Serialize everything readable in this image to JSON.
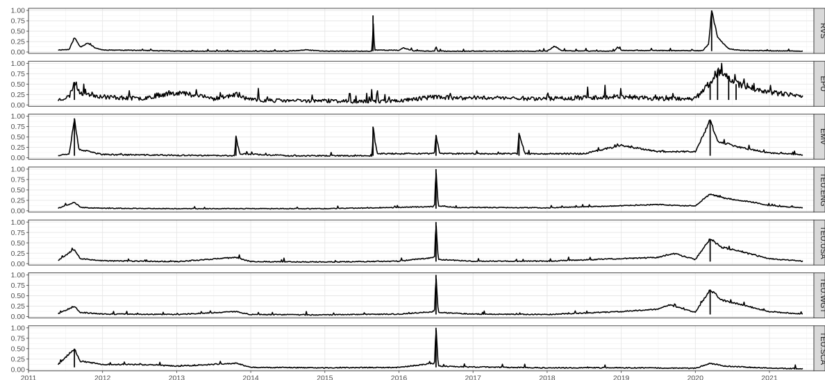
{
  "chart_data": {
    "type": "line",
    "layout": "faceted",
    "title": "",
    "xlabel": "",
    "ylabel": "",
    "xlim": [
      2011.0,
      2021.6
    ],
    "ylim": [
      0,
      1
    ],
    "x_ticks": [
      "2011",
      "2012",
      "2013",
      "2014",
      "2015",
      "2016",
      "2017",
      "2018",
      "2019",
      "2020",
      "2021"
    ],
    "y_ticks": [
      "0.00",
      "0.25",
      "0.50",
      "0.75",
      "1.00"
    ],
    "grid": true,
    "line_color": "#000000",
    "strip_color": "#d9d9d9",
    "panels": [
      {
        "label": "RVS",
        "baseline": 0.02,
        "noise": 0.015,
        "seed": 11,
        "points": [
          [
            2011.4,
            0.05
          ],
          [
            2011.55,
            0.06
          ],
          [
            2011.62,
            0.35
          ],
          [
            2011.7,
            0.12
          ],
          [
            2011.8,
            0.22
          ],
          [
            2011.9,
            0.1
          ],
          [
            2012.0,
            0.05
          ],
          [
            2012.5,
            0.04
          ],
          [
            2013.0,
            0.02
          ],
          [
            2014.5,
            0.02
          ],
          [
            2014.75,
            0.05
          ],
          [
            2015.0,
            0.02
          ],
          [
            2015.64,
            0.02
          ],
          [
            2015.65,
            0.88
          ],
          [
            2015.67,
            0.05
          ],
          [
            2016.0,
            0.04
          ],
          [
            2016.05,
            0.1
          ],
          [
            2016.2,
            0.03
          ],
          [
            2016.48,
            0.02
          ],
          [
            2016.5,
            0.14
          ],
          [
            2016.52,
            0.02
          ],
          [
            2018.0,
            0.02
          ],
          [
            2018.1,
            0.14
          ],
          [
            2018.2,
            0.03
          ],
          [
            2018.9,
            0.02
          ],
          [
            2018.95,
            0.12
          ],
          [
            2019.0,
            0.04
          ],
          [
            2020.1,
            0.03
          ],
          [
            2020.18,
            0.2
          ],
          [
            2020.22,
            1.0
          ],
          [
            2020.3,
            0.35
          ],
          [
            2020.45,
            0.08
          ],
          [
            2020.6,
            0.04
          ],
          [
            2021.0,
            0.03
          ],
          [
            2021.45,
            0.02
          ]
        ]
      },
      {
        "label": "EPU",
        "baseline": 0.12,
        "noise": 0.07,
        "seed": 23,
        "points": [
          [
            2011.4,
            0.12
          ],
          [
            2011.55,
            0.2
          ],
          [
            2011.62,
            0.55
          ],
          [
            2011.7,
            0.3
          ],
          [
            2012.0,
            0.2
          ],
          [
            2012.5,
            0.15
          ],
          [
            2012.8,
            0.25
          ],
          [
            2013.0,
            0.3
          ],
          [
            2013.2,
            0.25
          ],
          [
            2013.5,
            0.15
          ],
          [
            2013.8,
            0.25
          ],
          [
            2014.0,
            0.12
          ],
          [
            2014.5,
            0.1
          ],
          [
            2015.0,
            0.1
          ],
          [
            2015.5,
            0.08
          ],
          [
            2016.0,
            0.1
          ],
          [
            2016.5,
            0.2
          ],
          [
            2016.8,
            0.15
          ],
          [
            2017.0,
            0.18
          ],
          [
            2018.0,
            0.15
          ],
          [
            2019.0,
            0.2
          ],
          [
            2019.5,
            0.15
          ],
          [
            2020.0,
            0.15
          ],
          [
            2020.2,
            0.55
          ],
          [
            2020.3,
            0.8
          ],
          [
            2020.45,
            0.7
          ],
          [
            2020.55,
            0.5
          ],
          [
            2020.7,
            0.45
          ],
          [
            2021.0,
            0.3
          ],
          [
            2021.45,
            0.2
          ]
        ]
      },
      {
        "label": "EMV",
        "baseline": 0.05,
        "noise": 0.025,
        "seed": 37,
        "points": [
          [
            2011.4,
            0.06
          ],
          [
            2011.55,
            0.1
          ],
          [
            2011.62,
            0.95
          ],
          [
            2011.68,
            0.2
          ],
          [
            2012.0,
            0.08
          ],
          [
            2013.0,
            0.06
          ],
          [
            2013.78,
            0.05
          ],
          [
            2013.8,
            0.5
          ],
          [
            2013.85,
            0.1
          ],
          [
            2014.5,
            0.05
          ],
          [
            2015.64,
            0.05
          ],
          [
            2015.65,
            0.75
          ],
          [
            2015.7,
            0.1
          ],
          [
            2016.48,
            0.1
          ],
          [
            2016.5,
            0.55
          ],
          [
            2016.55,
            0.1
          ],
          [
            2017.6,
            0.1
          ],
          [
            2017.62,
            0.6
          ],
          [
            2017.7,
            0.1
          ],
          [
            2018.5,
            0.1
          ],
          [
            2019.0,
            0.3
          ],
          [
            2019.5,
            0.15
          ],
          [
            2020.0,
            0.15
          ],
          [
            2020.2,
            0.9
          ],
          [
            2020.3,
            0.4
          ],
          [
            2020.6,
            0.25
          ],
          [
            2021.0,
            0.12
          ],
          [
            2021.45,
            0.07
          ]
        ]
      },
      {
        "label": "TEU.ENG",
        "baseline": 0.05,
        "noise": 0.015,
        "seed": 41,
        "points": [
          [
            2011.4,
            0.06
          ],
          [
            2011.62,
            0.2
          ],
          [
            2011.7,
            0.08
          ],
          [
            2012.0,
            0.06
          ],
          [
            2013.0,
            0.05
          ],
          [
            2014.0,
            0.05
          ],
          [
            2015.0,
            0.05
          ],
          [
            2016.0,
            0.08
          ],
          [
            2016.48,
            0.1
          ],
          [
            2016.5,
            1.0
          ],
          [
            2016.53,
            0.12
          ],
          [
            2016.8,
            0.07
          ],
          [
            2017.0,
            0.08
          ],
          [
            2018.0,
            0.07
          ],
          [
            2019.0,
            0.12
          ],
          [
            2019.5,
            0.15
          ],
          [
            2019.8,
            0.12
          ],
          [
            2020.0,
            0.12
          ],
          [
            2020.2,
            0.4
          ],
          [
            2020.4,
            0.3
          ],
          [
            2020.8,
            0.2
          ],
          [
            2021.0,
            0.12
          ],
          [
            2021.45,
            0.07
          ]
        ]
      },
      {
        "label": "TEU.USA",
        "baseline": 0.05,
        "noise": 0.02,
        "seed": 53,
        "points": [
          [
            2011.4,
            0.08
          ],
          [
            2011.62,
            0.35
          ],
          [
            2011.7,
            0.12
          ],
          [
            2012.0,
            0.07
          ],
          [
            2013.0,
            0.05
          ],
          [
            2013.8,
            0.15
          ],
          [
            2014.0,
            0.05
          ],
          [
            2015.0,
            0.04
          ],
          [
            2016.0,
            0.06
          ],
          [
            2016.48,
            0.15
          ],
          [
            2016.5,
            1.0
          ],
          [
            2016.53,
            0.1
          ],
          [
            2017.0,
            0.06
          ],
          [
            2018.0,
            0.06
          ],
          [
            2019.0,
            0.12
          ],
          [
            2019.5,
            0.15
          ],
          [
            2019.7,
            0.25
          ],
          [
            2020.0,
            0.1
          ],
          [
            2020.2,
            0.6
          ],
          [
            2020.35,
            0.4
          ],
          [
            2020.7,
            0.25
          ],
          [
            2021.0,
            0.12
          ],
          [
            2021.45,
            0.06
          ]
        ]
      },
      {
        "label": "TEU.WGT",
        "baseline": 0.05,
        "noise": 0.018,
        "seed": 67,
        "points": [
          [
            2011.4,
            0.07
          ],
          [
            2011.62,
            0.25
          ],
          [
            2011.7,
            0.1
          ],
          [
            2012.0,
            0.06
          ],
          [
            2013.0,
            0.05
          ],
          [
            2013.8,
            0.12
          ],
          [
            2014.0,
            0.05
          ],
          [
            2015.0,
            0.04
          ],
          [
            2016.0,
            0.06
          ],
          [
            2016.48,
            0.12
          ],
          [
            2016.5,
            1.0
          ],
          [
            2016.53,
            0.1
          ],
          [
            2017.0,
            0.06
          ],
          [
            2018.0,
            0.05
          ],
          [
            2019.0,
            0.12
          ],
          [
            2019.5,
            0.18
          ],
          [
            2019.65,
            0.28
          ],
          [
            2020.0,
            0.1
          ],
          [
            2020.2,
            0.65
          ],
          [
            2020.35,
            0.4
          ],
          [
            2020.7,
            0.25
          ],
          [
            2021.0,
            0.12
          ],
          [
            2021.45,
            0.06
          ]
        ]
      },
      {
        "label": "TEU.SCA",
        "baseline": 0.05,
        "noise": 0.02,
        "seed": 79,
        "points": [
          [
            2011.4,
            0.12
          ],
          [
            2011.62,
            0.5
          ],
          [
            2011.7,
            0.2
          ],
          [
            2012.0,
            0.12
          ],
          [
            2012.5,
            0.12
          ],
          [
            2013.0,
            0.08
          ],
          [
            2013.8,
            0.15
          ],
          [
            2014.0,
            0.05
          ],
          [
            2015.0,
            0.04
          ],
          [
            2016.0,
            0.05
          ],
          [
            2016.48,
            0.15
          ],
          [
            2016.5,
            1.0
          ],
          [
            2016.53,
            0.08
          ],
          [
            2017.0,
            0.06
          ],
          [
            2018.0,
            0.04
          ],
          [
            2019.0,
            0.04
          ],
          [
            2020.0,
            0.03
          ],
          [
            2020.2,
            0.15
          ],
          [
            2020.4,
            0.08
          ],
          [
            2021.0,
            0.03
          ],
          [
            2021.45,
            0.02
          ]
        ]
      }
    ]
  }
}
